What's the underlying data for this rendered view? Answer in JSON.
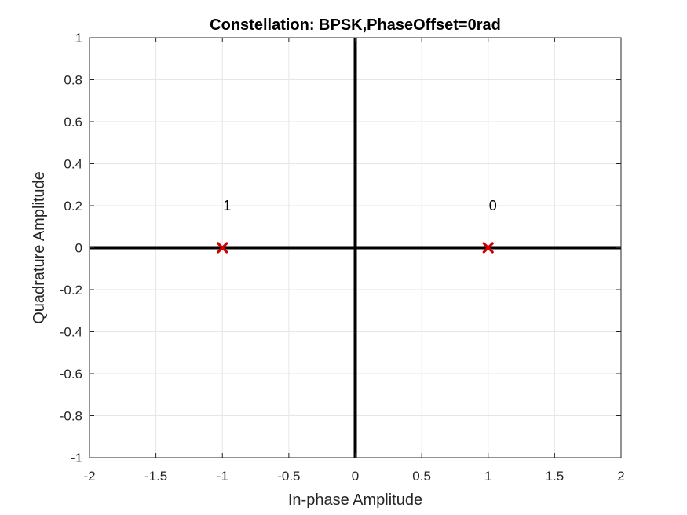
{
  "chart_data": {
    "type": "scatter",
    "title": "Constellation: BPSK,PhaseOffset=0rad",
    "xlabel": "In-phase Amplitude",
    "ylabel": "Quadrature Amplitude",
    "xlim": [
      -2,
      2
    ],
    "ylim": [
      -1,
      1
    ],
    "xticks": [
      -2,
      -1.5,
      -1,
      -0.5,
      0,
      0.5,
      1,
      1.5,
      2
    ],
    "yticks": [
      -1,
      -0.8,
      -0.6,
      -0.4,
      -0.2,
      0,
      0.2,
      0.4,
      0.6,
      0.8,
      1
    ],
    "xtick_labels": [
      "-2",
      "-1.5",
      "-1",
      "-0.5",
      "0",
      "0.5",
      "1",
      "1.5",
      "2"
    ],
    "ytick_labels": [
      "-1",
      "-0.8",
      "-0.6",
      "-0.4",
      "-0.2",
      "0",
      "0.2",
      "0.4",
      "0.6",
      "0.8",
      "1"
    ],
    "grid": true,
    "reference_lines": {
      "x": 0,
      "y": 0,
      "color": "#000000"
    },
    "series": [
      {
        "marker": "x",
        "color": "#d10000",
        "points": [
          {
            "x": -1,
            "y": 0,
            "label": "1"
          },
          {
            "x": 1,
            "y": 0,
            "label": "0"
          }
        ]
      }
    ],
    "point_labels": [
      {
        "text": "1",
        "x": -1,
        "y": 0.2
      },
      {
        "text": "0",
        "x": 1,
        "y": 0.2
      }
    ]
  }
}
